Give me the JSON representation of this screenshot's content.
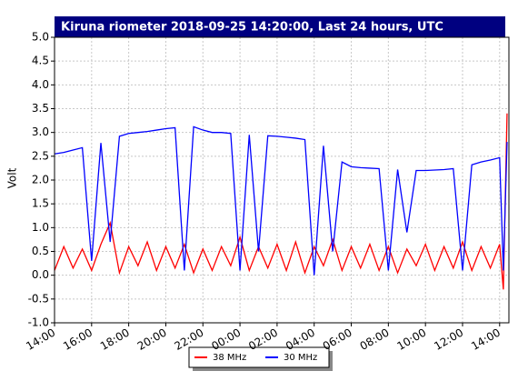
{
  "chart_data": {
    "type": "line",
    "title": "Kiruna riometer 2018-09-25 14:20:00, Last 24 hours, UTC",
    "y_label": "Volt",
    "xlim": [
      0,
      24.5
    ],
    "xticks": [
      {
        "value": 0,
        "label": "14:00"
      },
      {
        "value": 2,
        "label": "16:00"
      },
      {
        "value": 4,
        "label": "18:00"
      },
      {
        "value": 6,
        "label": "20:00"
      },
      {
        "value": 8,
        "label": "22:00"
      },
      {
        "value": 10,
        "label": "00:00"
      },
      {
        "value": 12,
        "label": "02:00"
      },
      {
        "value": 14,
        "label": "04:00"
      },
      {
        "value": 16,
        "label": "06:00"
      },
      {
        "value": 18,
        "label": "08:00"
      },
      {
        "value": 20,
        "label": "10:00"
      },
      {
        "value": 22,
        "label": "12:00"
      },
      {
        "value": 24,
        "label": "14:00"
      }
    ],
    "ylim": [
      -1,
      5
    ],
    "yticks": [
      {
        "value": 5,
        "label": "5.0"
      },
      {
        "value": 4.5,
        "label": "4.5"
      },
      {
        "value": 4,
        "label": "4.0"
      },
      {
        "value": 3.5,
        "label": "3.5"
      },
      {
        "value": 3,
        "label": "3.0"
      },
      {
        "value": 2.5,
        "label": "2.5"
      },
      {
        "value": 2,
        "label": "2.0"
      },
      {
        "value": 1.5,
        "label": "1.5"
      },
      {
        "value": 1,
        "label": "1.0"
      },
      {
        "value": 0.5,
        "label": "0.5"
      },
      {
        "value": 0,
        "label": "0.0"
      },
      {
        "value": -0.5,
        "label": "-0.5"
      },
      {
        "value": -1,
        "label": "-1.0"
      }
    ],
    "grid": true,
    "x": [
      0,
      0.5,
      1,
      1.5,
      2,
      2.5,
      3,
      3.5,
      4,
      4.5,
      5,
      5.5,
      6,
      6.5,
      7,
      7.5,
      8,
      8.5,
      9,
      9.5,
      10,
      10.5,
      11,
      11.5,
      12,
      12.5,
      13,
      13.5,
      14,
      14.5,
      15,
      15.5,
      16,
      16.5,
      17,
      17.5,
      18,
      18.5,
      19,
      19.5,
      20,
      20.5,
      21,
      21.5,
      22,
      22.5,
      23,
      23.5,
      24,
      24.2,
      24.4
    ],
    "series": [
      {
        "name": "38 MHz",
        "color": "#ff0000",
        "values": [
          0.1,
          0.6,
          0.15,
          0.55,
          0.1,
          0.65,
          1.1,
          0.05,
          0.6,
          0.2,
          0.7,
          0.1,
          0.6,
          0.15,
          0.65,
          0.05,
          0.55,
          0.1,
          0.6,
          0.2,
          0.8,
          0.1,
          0.6,
          0.15,
          0.65,
          0.1,
          0.7,
          0.05,
          0.6,
          0.2,
          0.75,
          0.1,
          0.6,
          0.15,
          0.65,
          0.1,
          0.6,
          0.05,
          0.55,
          0.2,
          0.65,
          0.1,
          0.6,
          0.15,
          0.7,
          0.1,
          0.6,
          0.15,
          0.65,
          -0.3,
          3.4
        ]
      },
      {
        "name": "30 MHz",
        "color": "#0000ff",
        "values": [
          2.55,
          2.58,
          2.63,
          2.68,
          0.3,
          2.78,
          0.7,
          2.92,
          2.98,
          3.0,
          3.02,
          3.05,
          3.08,
          3.1,
          0.1,
          3.12,
          3.05,
          3.0,
          3.0,
          2.98,
          0.1,
          2.95,
          0.5,
          2.93,
          2.92,
          2.9,
          2.88,
          2.85,
          0.0,
          2.72,
          0.5,
          2.38,
          2.28,
          2.26,
          2.25,
          2.24,
          0.1,
          2.22,
          0.9,
          2.2,
          2.2,
          2.21,
          2.22,
          2.24,
          0.1,
          2.32,
          2.38,
          2.42,
          2.47,
          0.1,
          2.8
        ]
      }
    ]
  }
}
